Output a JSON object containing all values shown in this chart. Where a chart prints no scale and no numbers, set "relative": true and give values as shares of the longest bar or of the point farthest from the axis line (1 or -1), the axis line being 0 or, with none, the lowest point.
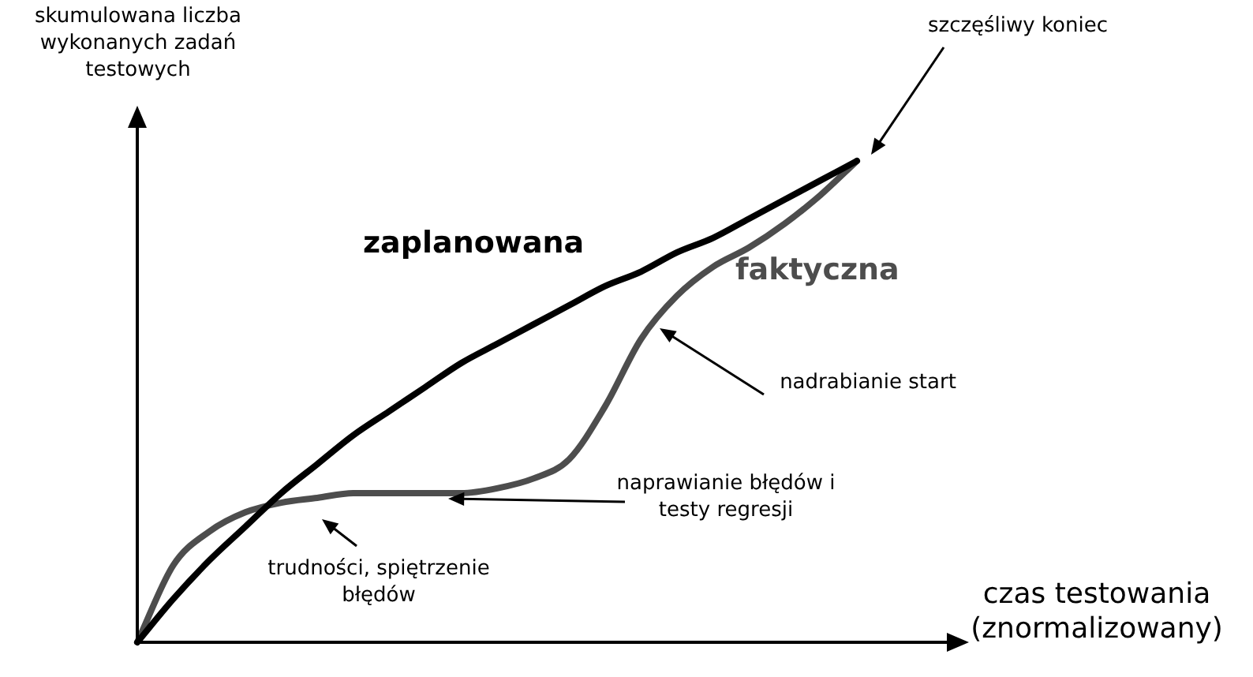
{
  "chart_data": {
    "type": "line",
    "relative": true,
    "ylabel": "skumulowana liczba wykonanych zadań testowych",
    "xlabel": "czas testowania (znormalizowany)",
    "marker": "none",
    "line_style": "solid",
    "categories": [
      null,
      null,
      null,
      null,
      null,
      null,
      null,
      null,
      null,
      null,
      null,
      null,
      null,
      null,
      null,
      null,
      null,
      null,
      null,
      null,
      null
    ],
    "series": [
      {
        "name": "zaplanowana",
        "color": "#000000",
        "values": [
          0,
          0.09,
          0.17,
          0.24,
          0.31,
          0.37,
          0.43,
          0.48,
          0.53,
          0.58,
          0.62,
          0.66,
          0.7,
          0.74,
          0.77,
          0.81,
          0.84,
          0.88,
          0.92,
          0.96,
          1
        ]
      },
      {
        "name": "faktyczna",
        "color": "#4d4d4d",
        "values": [
          0,
          0.16,
          0.23,
          0.27,
          0.29,
          0.3,
          0.31,
          0.31,
          0.31,
          0.31,
          0.32,
          0.34,
          0.38,
          0.49,
          0.63,
          0.72,
          0.78,
          0.82,
          0.87,
          0.93,
          1
        ]
      }
    ],
    "annotations": [
      "szczęśliwy koniec",
      "nadrabianie start",
      "naprawianie błędów i testy regresji",
      "trudności, spiętrzenie błędów"
    ]
  }
}
